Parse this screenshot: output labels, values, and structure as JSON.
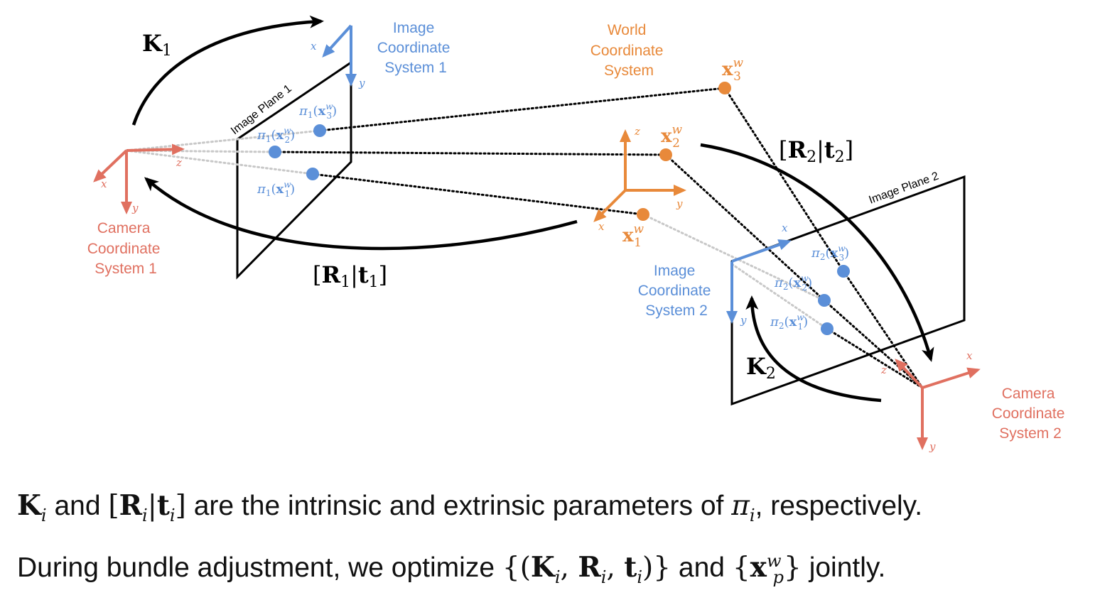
{
  "colors": {
    "camera": "#e07060",
    "image": "#5b8fd8",
    "world": "#e8893a",
    "black": "#000000",
    "projection_dotted_gray": "#c8c8c8"
  },
  "camera1": {
    "label_lines": [
      "Camera",
      "Coordinate",
      "System 1"
    ],
    "axes": {
      "x": "x",
      "y": "y",
      "z": "z"
    }
  },
  "camera2": {
    "label_lines": [
      "Camera",
      "Coordinate",
      "System 2"
    ],
    "axes": {
      "x": "x",
      "y": "y",
      "z": "z"
    }
  },
  "image1": {
    "label_lines": [
      "Image",
      "Coordinate",
      "System 1"
    ],
    "plane_label": "Image Plane 1",
    "axes": {
      "x": "x",
      "y": "y"
    },
    "projections": [
      {
        "fn": "π",
        "sub": "1",
        "var": "x",
        "sup": "w",
        "idx": "3"
      },
      {
        "fn": "π",
        "sub": "1",
        "var": "x",
        "sup": "w",
        "idx": "2"
      },
      {
        "fn": "π",
        "sub": "1",
        "var": "x",
        "sup": "w",
        "idx": "1"
      }
    ]
  },
  "image2": {
    "label_lines": [
      "Image",
      "Coordinate",
      "System 2"
    ],
    "plane_label": "Image Plane 2",
    "axes": {
      "x": "x",
      "y": "y"
    },
    "projections": [
      {
        "fn": "π",
        "sub": "2",
        "var": "x",
        "sup": "w",
        "idx": "3"
      },
      {
        "fn": "π",
        "sub": "2",
        "var": "x",
        "sup": "w",
        "idx": "2"
      },
      {
        "fn": "π",
        "sub": "2",
        "var": "x",
        "sup": "w",
        "idx": "1"
      }
    ]
  },
  "world": {
    "label_lines": [
      "World",
      "Coordinate",
      "System"
    ],
    "axes": {
      "x": "x",
      "y": "y",
      "z": "z"
    },
    "points": [
      {
        "var": "x",
        "sup": "w",
        "idx": "3"
      },
      {
        "var": "x",
        "sup": "w",
        "idx": "2"
      },
      {
        "var": "x",
        "sup": "w",
        "idx": "1"
      }
    ]
  },
  "transforms": {
    "K1": {
      "base": "K",
      "sub": "1"
    },
    "K2": {
      "base": "K",
      "sub": "2"
    },
    "Rt1": {
      "R": "R",
      "t": "t",
      "sub": "1"
    },
    "Rt2": {
      "R": "R",
      "t": "t",
      "sub": "2"
    }
  },
  "caption": {
    "line1": {
      "K": "K",
      "i": "i",
      "and": " and ",
      "R": "R",
      "t": "t",
      "rest": " are the intrinsic and extrinsic parameters of ",
      "pi": "π",
      "end": ", respectively."
    },
    "line2": {
      "start": "During bundle adjustment, we optimize ",
      "set1_open": "{(",
      "K": "K",
      "R": "R",
      "t": "t",
      "i": "i",
      "set1_close": ")}",
      "and": " and ",
      "x": "x",
      "sup": "w",
      "sub": "p",
      "end": " jointly."
    }
  }
}
